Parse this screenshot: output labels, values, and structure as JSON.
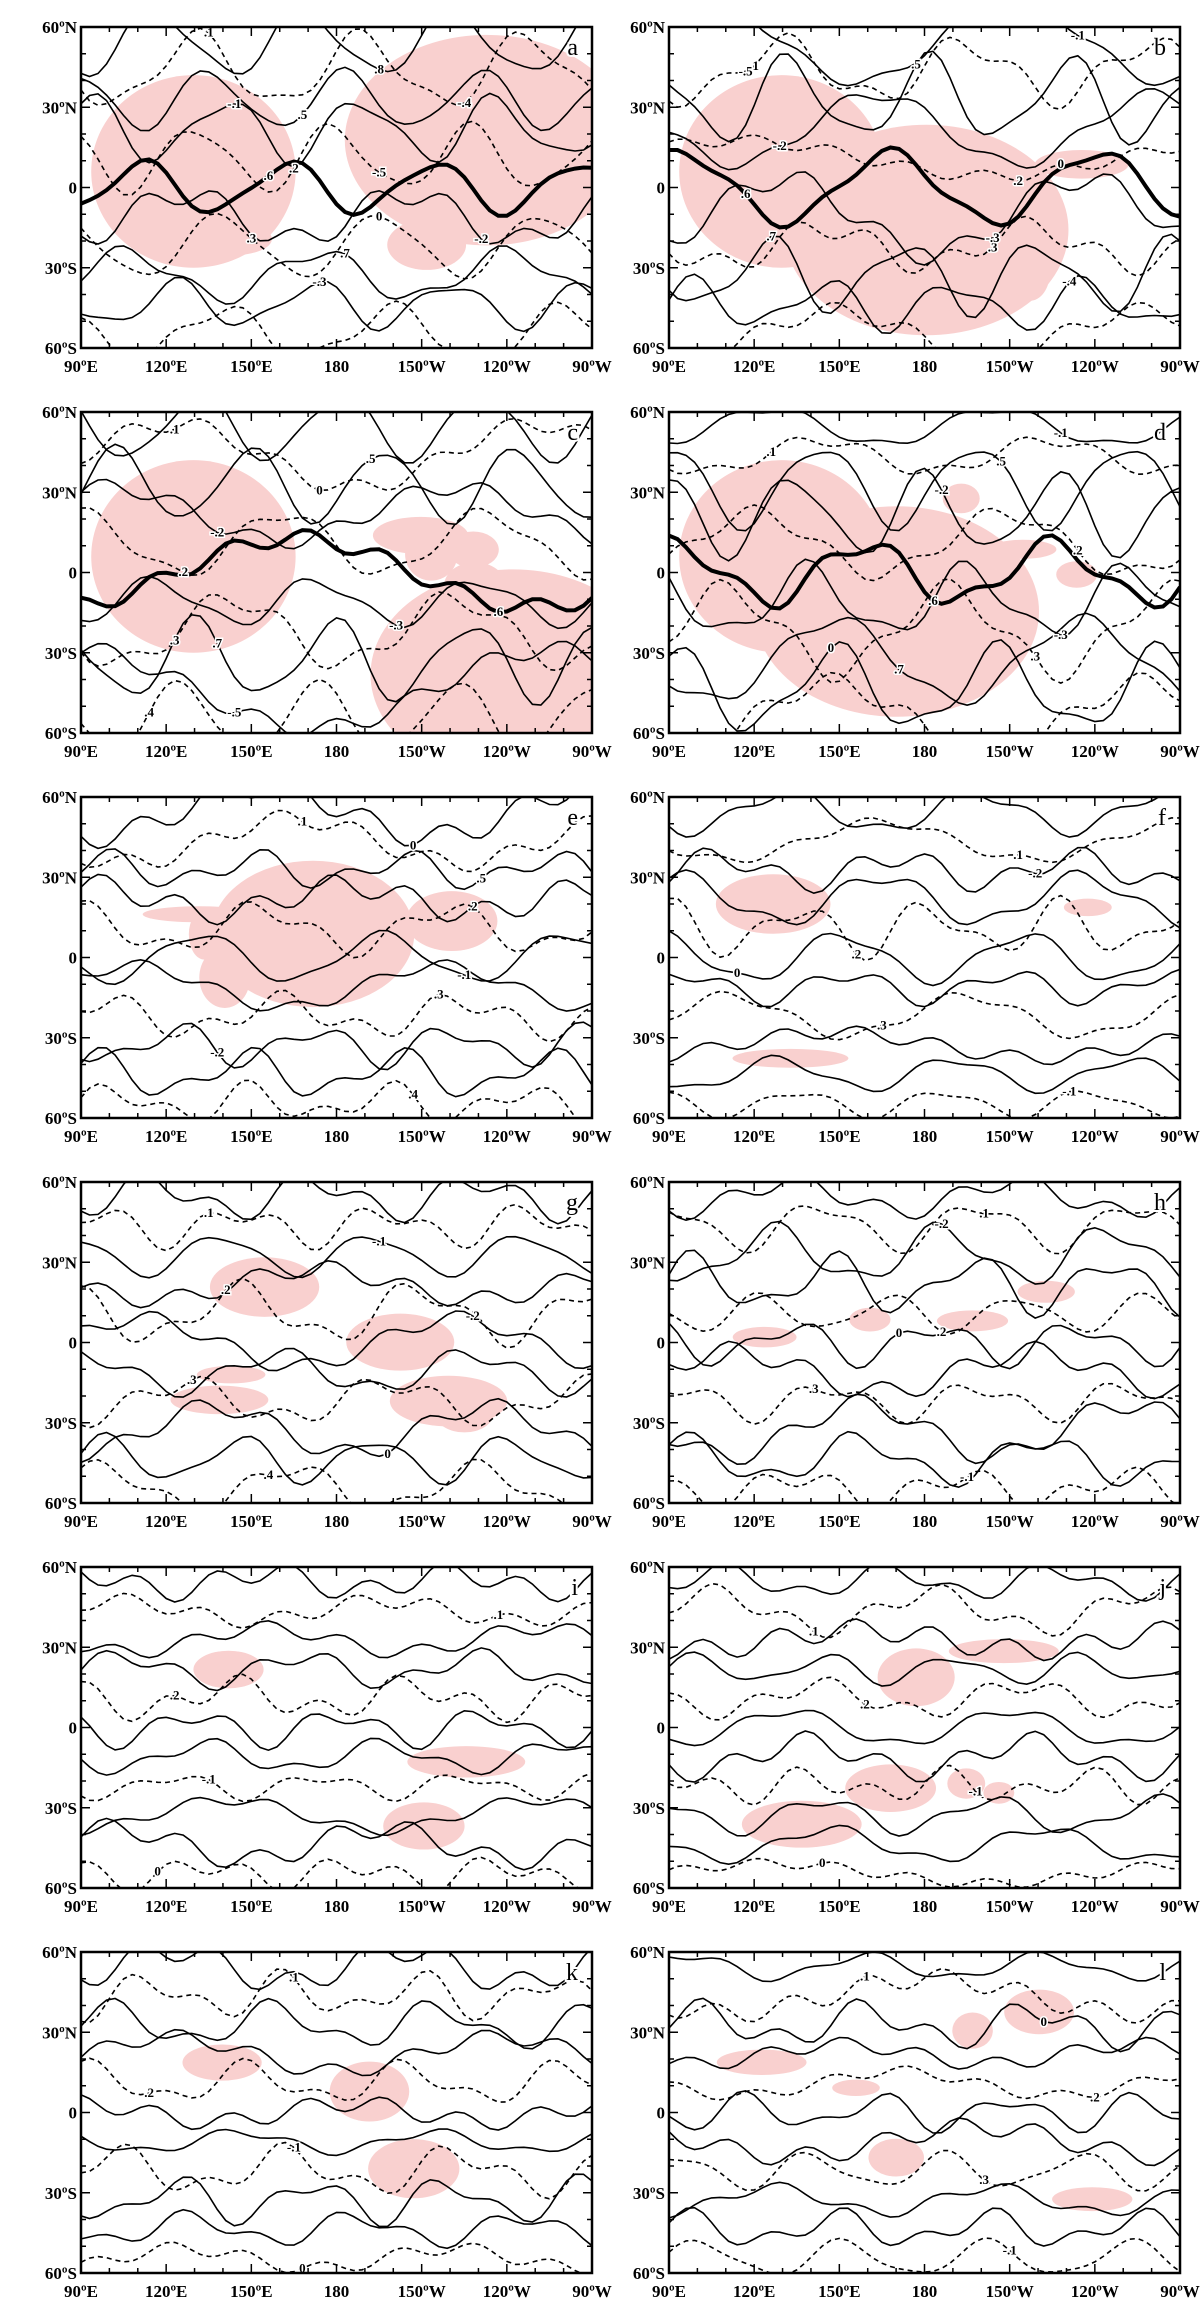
{
  "y_axis_labels": [
    "60ºN",
    "30ºN",
    "0",
    "30ºS",
    "60ºS"
  ],
  "x_axis_labels": [
    "90ºE",
    "120ºE",
    "150ºE",
    "180",
    "150ºW",
    "120ºW",
    "90ºW"
  ],
  "panels": [
    {
      "label": "a",
      "contour_labels": [
        ".1",
        ".2",
        ".3",
        ".4",
        ".5",
        ".6",
        ".7",
        ".8",
        "-.1",
        "-.2",
        "-.3",
        "-.4",
        "-.5",
        "0"
      ]
    },
    {
      "label": "b",
      "contour_labels": [
        ".1",
        ".2",
        ".3",
        ".4",
        ".5",
        ".6",
        ".7",
        "-.1",
        "-.2",
        "-.3",
        "-.4",
        "-.5",
        "0"
      ]
    },
    {
      "label": "c",
      "contour_labels": [
        ".1",
        ".2",
        ".3",
        ".4",
        ".5",
        ".6",
        ".7",
        "-.1",
        "-.2",
        "-.3",
        "-.5",
        "0"
      ]
    },
    {
      "label": "d",
      "contour_labels": [
        ".1",
        ".2",
        ".3",
        ".4",
        ".5",
        ".6",
        ".7",
        "-.1",
        "-.2",
        "-.3",
        "0"
      ]
    },
    {
      "label": "e",
      "contour_labels": [
        ".1",
        ".2",
        ".3",
        ".4",
        ".5",
        "-.1",
        "-.2",
        "0"
      ]
    },
    {
      "label": "f",
      "contour_labels": [
        ".1",
        ".2",
        ".3",
        "-.1",
        "-.2",
        "0"
      ]
    },
    {
      "label": "g",
      "contour_labels": [
        ".1",
        ".2",
        ".3",
        ".4",
        "-.1",
        "-.2",
        "0"
      ]
    },
    {
      "label": "h",
      "contour_labels": [
        ".1",
        ".2",
        ".3",
        "-.1",
        "-.2",
        "0"
      ]
    },
    {
      "label": "i",
      "contour_labels": [
        ".1",
        ".2",
        "-.1",
        "0"
      ]
    },
    {
      "label": "j",
      "contour_labels": [
        ".1",
        ".2",
        "-.1",
        "0"
      ]
    },
    {
      "label": "k",
      "contour_labels": [
        ".1",
        ".2",
        "-.1",
        "0"
      ]
    },
    {
      "label": "l",
      "contour_labels": [
        ".1",
        ".2",
        ".3",
        "-.1",
        "0"
      ]
    }
  ]
}
